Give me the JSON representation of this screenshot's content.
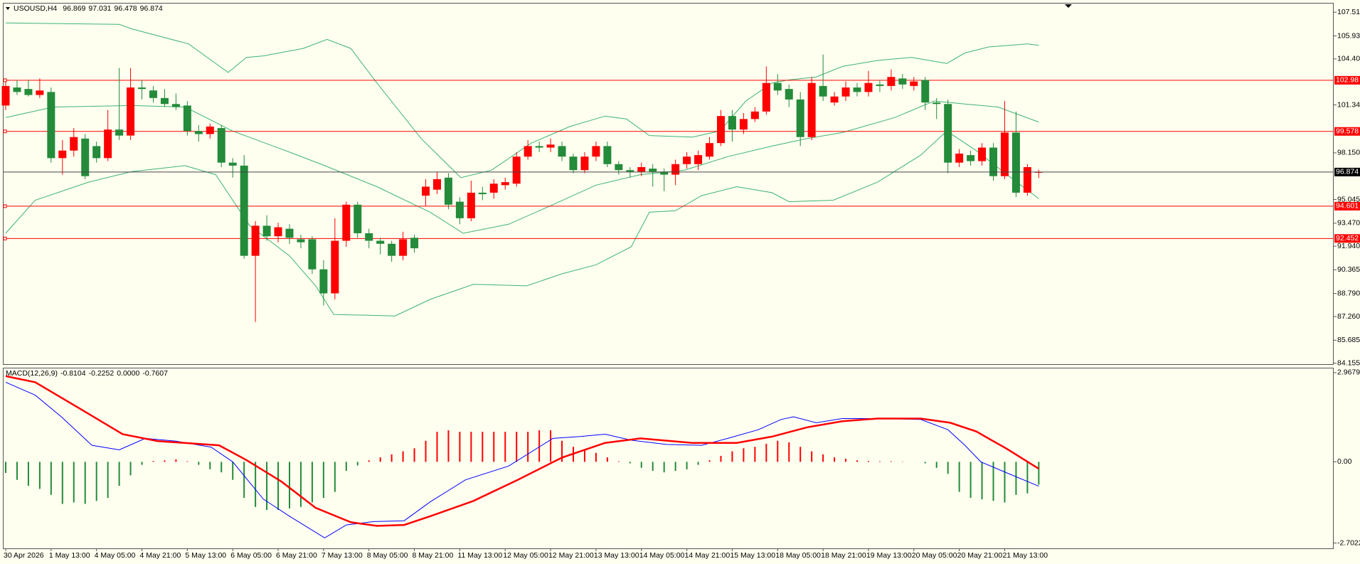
{
  "chart_data": [
    {
      "type": "candlestick",
      "title": "USOUSD,H4",
      "categories": [
        "30 Apr 2026",
        null,
        null,
        null,
        "1 May 13:00",
        null,
        null,
        null,
        "4 May 05:00",
        null,
        null,
        null,
        "4 May 21:00",
        null,
        null,
        null,
        "5 May 13:00",
        null,
        null,
        null,
        "6 May 05:00",
        null,
        null,
        null,
        "6 May 21:00",
        null,
        null,
        null,
        "7 May 13:00",
        null,
        null,
        null,
        "8 May 05:00",
        null,
        null,
        null,
        "8 May 21:00",
        null,
        null,
        null,
        "11 May 13:00",
        null,
        null,
        null,
        "12 May 05:00",
        null,
        null,
        null,
        "12 May 21:00",
        null,
        null,
        null,
        "13 May 13:00",
        null,
        null,
        null,
        "14 May 05:00",
        null,
        null,
        null,
        "14 May 21:00",
        null,
        null,
        null,
        "15 May 13:00",
        null,
        null,
        null,
        "18 May 05:00",
        null,
        null,
        null,
        "18 May 21:00",
        null,
        null,
        null,
        "19 May 13:00",
        null,
        null,
        null,
        "20 May 05:00",
        null,
        null,
        null,
        "20 May 21:00",
        null,
        null,
        null,
        "21 May 13:00",
        null,
        null,
        null
      ],
      "open": [
        101.3,
        102.5,
        102.4,
        102.0,
        102.2,
        97.8,
        98.3,
        99.1,
        98.6,
        97.8,
        99.7,
        99.3,
        102.5,
        102.3,
        101.8,
        101.4,
        101.3,
        99.6,
        99.4,
        99.8,
        97.5,
        97.3,
        91.3,
        93.3,
        92.6,
        93.1,
        92.4,
        92.4,
        90.4,
        88.8,
        92.3,
        94.7,
        92.8,
        92.3,
        92.1,
        91.3,
        92.5,
        95.3,
        95.7,
        96.5,
        94.9,
        93.8,
        95.5,
        95.5,
        96.0,
        96.1,
        97.9,
        98.6,
        98.5,
        98.6,
        97.9,
        97.0,
        97.9,
        98.6,
        97.4,
        97.0,
        96.9,
        97.1,
        96.9,
        96.7,
        97.4,
        97.4,
        97.9,
        98.8,
        100.6,
        99.7,
        100.4,
        100.9,
        102.8,
        102.4,
        101.7,
        99.2,
        102.6,
        101.5,
        101.9,
        102.5,
        102.2,
        102.7,
        102.6,
        103.1,
        102.6,
        103.0,
        101.5,
        101.4,
        97.5,
        98.0,
        97.6,
        98.5,
        96.6,
        99.5,
        95.5,
        96.869
      ],
      "high": [
        102.9,
        103.0,
        103.0,
        103.1,
        102.5,
        99.0,
        99.8,
        99.4,
        98.9,
        101.0,
        103.8,
        103.8,
        103.0,
        102.6,
        102.4,
        102.1,
        101.6,
        100.0,
        100.1,
        100.0,
        97.8,
        98.0,
        93.6,
        94.0,
        93.5,
        93.4,
        92.7,
        92.6,
        91.0,
        93.8,
        94.9,
        94.9,
        93.1,
        92.5,
        92.3,
        92.9,
        92.7,
        96.4,
        96.9,
        96.8,
        95.2,
        96.3,
        95.9,
        96.4,
        96.5,
        98.2,
        99.0,
        98.9,
        99.1,
        98.9,
        98.1,
        98.2,
        98.9,
        98.9,
        97.6,
        97.2,
        97.5,
        97.4,
        97.1,
        97.7,
        98.2,
        98.3,
        99.2,
        101.0,
        101.0,
        100.8,
        101.2,
        103.9,
        103.4,
        102.7,
        102.2,
        103.2,
        104.7,
        102.2,
        102.9,
        102.8,
        103.6,
        103.0,
        103.7,
        103.4,
        103.2,
        103.2,
        101.8,
        101.7,
        98.4,
        98.3,
        98.8,
        98.8,
        101.6,
        100.9,
        97.4,
        97.031
      ],
      "low": [
        101.0,
        102.0,
        101.9,
        101.8,
        97.5,
        96.7,
        97.9,
        96.4,
        97.5,
        97.6,
        99.0,
        99.0,
        101.7,
        101.5,
        101.2,
        101.0,
        99.3,
        98.9,
        99.1,
        97.2,
        96.5,
        91.1,
        86.9,
        92.3,
        92.2,
        92.1,
        91.8,
        90.1,
        88.0,
        88.4,
        91.9,
        92.5,
        91.8,
        91.4,
        90.9,
        91.0,
        91.5,
        94.6,
        95.4,
        94.4,
        93.4,
        93.6,
        95.0,
        95.1,
        95.7,
        95.9,
        97.7,
        98.2,
        98.2,
        97.6,
        96.8,
        96.8,
        97.6,
        97.2,
        96.7,
        96.5,
        96.6,
        95.9,
        95.6,
        96.0,
        97.1,
        97.0,
        97.7,
        98.6,
        98.9,
        99.4,
        100.2,
        100.7,
        102.0,
        101.2,
        98.6,
        99.0,
        101.6,
        101.3,
        101.6,
        101.9,
        101.9,
        102.2,
        102.3,
        102.4,
        102.3,
        101.0,
        100.4,
        96.8,
        97.2,
        97.3,
        97.3,
        96.3,
        96.4,
        95.2,
        95.3,
        96.478
      ],
      "close": [
        102.6,
        102.2,
        102.0,
        102.3,
        97.8,
        98.3,
        99.2,
        96.6,
        97.8,
        99.7,
        99.3,
        102.5,
        102.4,
        101.8,
        101.4,
        101.2,
        99.6,
        99.4,
        99.9,
        97.5,
        97.3,
        91.3,
        93.3,
        92.6,
        93.2,
        92.5,
        92.2,
        90.4,
        88.8,
        92.3,
        94.7,
        92.8,
        92.3,
        92.1,
        91.3,
        92.4,
        91.8,
        95.9,
        96.4,
        94.7,
        93.8,
        95.5,
        95.4,
        96.1,
        96.2,
        97.9,
        98.6,
        98.5,
        98.7,
        97.9,
        97.0,
        97.9,
        98.6,
        97.4,
        97.0,
        96.9,
        97.2,
        96.9,
        96.7,
        97.4,
        97.9,
        98.0,
        98.8,
        100.6,
        99.7,
        100.4,
        100.9,
        102.8,
        102.3,
        101.7,
        99.2,
        102.8,
        101.9,
        101.9,
        102.5,
        102.2,
        102.8,
        102.6,
        103.2,
        102.7,
        102.9,
        101.5,
        101.4,
        97.5,
        98.1,
        97.6,
        98.5,
        96.6,
        99.5,
        95.5,
        97.2,
        96.874
      ],
      "up_color": "#ff0000",
      "down_color": "#238b3a",
      "bands": [
        {
          "x": [
            0,
            10,
            11.1,
            16.1,
            19.6,
            21.2,
            22.7,
            26.2,
            28.3,
            30.4,
            32.7,
            36.6,
            40.1,
            42.8,
            46.3,
            49.7,
            52.8,
            54.7,
            56.7,
            60.5,
            62.9,
            65.2,
            67.5,
            69,
            71.4,
            73.7,
            76.8,
            79.8,
            82.9,
            84.5,
            86.6,
            90,
            91
          ],
          "values": [
            106.8,
            106.7,
            106.4,
            105.4,
            103.5,
            104.5,
            104.6,
            105.1,
            105.7,
            105.1,
            102.8,
            99.1,
            96.5,
            97.0,
            98.8,
            99.9,
            100.6,
            100.4,
            99.3,
            99.2,
            99.6,
            101.6,
            102.8,
            103.0,
            103.2,
            103.9,
            104.3,
            104.5,
            104.1,
            104.8,
            105.2,
            105.4,
            105.3
          ]
        },
        {
          "x": [
            0,
            4.2,
            11.1,
            15.8,
            20,
            25,
            28.1,
            32.7,
            37.4,
            40.3,
            44.3,
            48.2,
            52,
            55.9,
            59.8,
            63.6,
            67.5,
            70.6,
            73.7,
            78.3,
            81.8,
            84.5,
            87.4,
            91
          ],
          "values": [
            100.5,
            101.2,
            101.3,
            101.2,
            99.6,
            98.2,
            97.3,
            95.9,
            94.2,
            92.8,
            93.4,
            94.7,
            96.0,
            96.7,
            97.0,
            97.9,
            98.6,
            99.1,
            99.5,
            100.5,
            101.6,
            101.4,
            101.2,
            100.2
          ]
        },
        {
          "x": [
            0,
            2.6,
            7.3,
            11.1,
            15.8,
            18.5,
            21.5,
            25,
            27.3,
            28.9,
            34.3,
            37.4,
            41.2,
            45.9,
            49,
            52,
            55.1,
            56.7,
            59,
            61.3,
            64.4,
            67.5,
            69,
            72.9,
            76.8,
            80.6,
            82.9,
            85.5,
            88.2,
            91
          ],
          "values": [
            92.8,
            95.0,
            96.2,
            96.9,
            97.3,
            96.7,
            93.3,
            91.3,
            89.3,
            87.4,
            87.3,
            88.4,
            89.4,
            89.3,
            90.1,
            90.7,
            91.9,
            94.2,
            94.3,
            95.3,
            95.9,
            95.5,
            94.9,
            95.0,
            96.2,
            98.0,
            99.6,
            98.3,
            96.7,
            95.1
          ]
        }
      ],
      "band_color": "#3cb371",
      "levels": [
        102.98,
        99.578,
        94.601,
        92.452
      ],
      "level_color": "#ff0000",
      "ylim": [
        84.09,
        108.085
      ],
      "yticks": [
        {
          "value": 107.51,
          "label": "107.510"
        },
        {
          "value": 105.93,
          "label": "105.930"
        },
        {
          "value": 104.4,
          "label": "104.400"
        },
        {
          "value": 101.34,
          "label": "101.340"
        },
        {
          "value": 98.15,
          "label": "98.150"
        },
        95.045,
        {
          "value": 93.47,
          "label": "93.470"
        },
        {
          "value": 91.94,
          "label": "91.940"
        },
        90.365,
        {
          "value": 88.79,
          "label": "88.790"
        },
        {
          "value": 87.26,
          "label": "87.260"
        },
        85.685,
        84.155
      ]
    },
    {
      "type": "macd",
      "title": "MACD(12,26,9)",
      "readout": [
        "-0.8104",
        "-0.2252",
        "0.0000",
        "-0.7607"
      ],
      "values": [
        -0.37,
        -0.6,
        -0.8,
        -0.9,
        -1.1,
        -1.4,
        -1.35,
        -1.4,
        -1.3,
        -1.2,
        -0.8,
        -0.45,
        -0.1,
        0.03,
        0.05,
        0.08,
        0.02,
        -0.1,
        -0.25,
        -0.35,
        -0.6,
        -1.2,
        -1.5,
        -1.6,
        -1.6,
        -1.55,
        -1.5,
        -1.35,
        -1.2,
        -1.0,
        -0.3,
        -0.12,
        0.05,
        0.15,
        0.25,
        0.35,
        0.45,
        0.7,
        1.0,
        1.05,
        1.0,
        1.0,
        1.0,
        1.0,
        1.0,
        1.0,
        1.0,
        1.05,
        1.05,
        0.7,
        0.5,
        0.4,
        0.3,
        0.15,
        0.02,
        -0.05,
        -0.2,
        -0.3,
        -0.35,
        -0.3,
        -0.25,
        -0.1,
        0.05,
        0.2,
        0.35,
        0.45,
        0.5,
        0.6,
        0.7,
        0.65,
        0.5,
        0.35,
        0.25,
        0.15,
        0.1,
        0.05,
        0.03,
        0.02,
        0.02,
        0.01,
        0,
        -0.05,
        -0.2,
        -0.4,
        -1.0,
        -1.2,
        -1.25,
        -1.3,
        -1.35,
        -1.1,
        -1.05,
        -0.7607
      ],
      "positive_color": "#ff0000",
      "negative_color": "#238b3a",
      "lines": [
        {
          "color": "#0000ff",
          "x": [
            0,
            2.6,
            4.9,
            7.6,
            10,
            12.3,
            15,
            18.1,
            20,
            22.7,
            25,
            28.1,
            30,
            32.4,
            35.1,
            37.4,
            40.5,
            44.3,
            48.2,
            50.5,
            52.8,
            55.1,
            58.2,
            61.3,
            63.6,
            66.3,
            68.3,
            69.4,
            71.4,
            73.7,
            76.8,
            80.6,
            83,
            84.5,
            85.9,
            88.2,
            91
          ],
          "values": [
            2.65,
            2.22,
            1.5,
            0.55,
            0.4,
            0.78,
            0.69,
            0.49,
            0,
            -1.24,
            -1.81,
            -2.53,
            -2.1,
            -1.99,
            -1.96,
            -1.33,
            -0.6,
            -0.14,
            0.78,
            0.84,
            0.92,
            0.72,
            0.58,
            0.55,
            0.78,
            1.07,
            1.41,
            1.5,
            1.3,
            1.44,
            1.44,
            1.41,
            1.07,
            0.55,
            0,
            -0.37,
            -0.81
          ]
        },
        {
          "color": "#ff0000",
          "x": [
            0,
            2.6,
            6.5,
            10.3,
            13.4,
            18.8,
            21.2,
            24.3,
            27.3,
            30.4,
            32.7,
            35.1,
            37.4,
            41.2,
            45.1,
            49,
            52.8,
            55.9,
            60.5,
            64.4,
            67.5,
            70.6,
            73.7,
            76.8,
            80.6,
            83.2,
            85.5,
            88.2,
            91
          ],
          "values": [
            2.85,
            2.65,
            1.78,
            0.92,
            0.69,
            0.55,
            0.06,
            -0.66,
            -1.53,
            -2.01,
            -2.13,
            -2.1,
            -1.81,
            -1.3,
            -0.6,
            0.14,
            0.63,
            0.78,
            0.63,
            0.63,
            0.84,
            1.15,
            1.35,
            1.44,
            1.44,
            1.3,
            1.01,
            0.43,
            -0.23
          ]
        }
      ],
      "ylim": [
        -2.879,
        3.109
      ],
      "yticks": [
        2.9679,
        {
          "value": 0,
          "label": "0.00"
        },
        -2.7022
      ]
    }
  ]
}
